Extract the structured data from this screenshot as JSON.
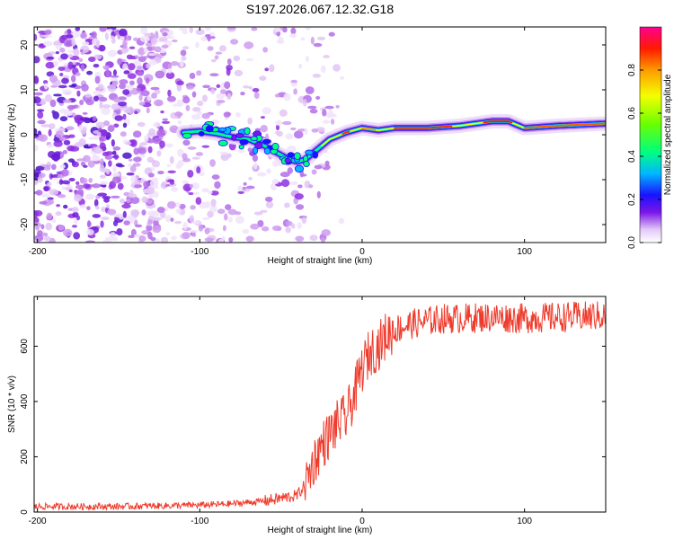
{
  "figure_title": "S197.2026.067.12.32.G18",
  "chart_data": [
    {
      "type": "heatmap",
      "title": "S197.2026.067.12.32.G18",
      "xlabel": "Height of straight line (km)",
      "ylabel": "Frequency (Hz)",
      "xlim": [
        -202,
        150
      ],
      "ylim": [
        -24,
        24
      ],
      "xticks": [
        -200,
        -100,
        0,
        100
      ],
      "yticks": [
        -20,
        -10,
        0,
        10,
        20
      ],
      "colorbar": {
        "label": "Normalized spectral amplitude",
        "range": [
          0,
          1
        ],
        "ticks": [
          0.0,
          0.2,
          0.4,
          0.6,
          0.8
        ]
      },
      "ridge": {
        "description": "dominant frequency vs height",
        "x": [
          -110,
          -100,
          -90,
          -80,
          -70,
          -60,
          -50,
          -45,
          -40,
          -35,
          -30,
          -20,
          -10,
          0,
          10,
          20,
          40,
          60,
          80,
          90,
          100,
          120,
          150
        ],
        "y": [
          0.5,
          0.8,
          0.3,
          -0.5,
          -1.0,
          -2.5,
          -4.5,
          -5.5,
          -6.0,
          -5.5,
          -4.0,
          -1.0,
          0.5,
          1.5,
          1.0,
          1.5,
          1.5,
          2.0,
          3.0,
          3.0,
          1.5,
          2.0,
          2.5
        ]
      }
    },
    {
      "type": "line",
      "xlabel": "Height of straight line (km)",
      "ylabel": "SNR (10 * v/v)",
      "xlim": [
        -202,
        150
      ],
      "ylim": [
        0,
        780
      ],
      "xticks": [
        -200,
        -100,
        0,
        100
      ],
      "yticks": [
        0,
        200,
        400,
        600
      ],
      "series": [
        {
          "name": "SNR",
          "color": "#ef3b2c",
          "x": [
            -202,
            -150,
            -100,
            -80,
            -60,
            -40,
            -35,
            -30,
            -25,
            -20,
            -15,
            -10,
            -5,
            0,
            5,
            10,
            15,
            20,
            25,
            30,
            40,
            50,
            60,
            80,
            100,
            120,
            150
          ],
          "y": [
            20,
            20,
            25,
            30,
            40,
            60,
            100,
            180,
            240,
            280,
            320,
            340,
            420,
            520,
            580,
            600,
            640,
            660,
            670,
            680,
            690,
            700,
            700,
            705,
            700,
            705,
            710
          ]
        }
      ]
    }
  ]
}
